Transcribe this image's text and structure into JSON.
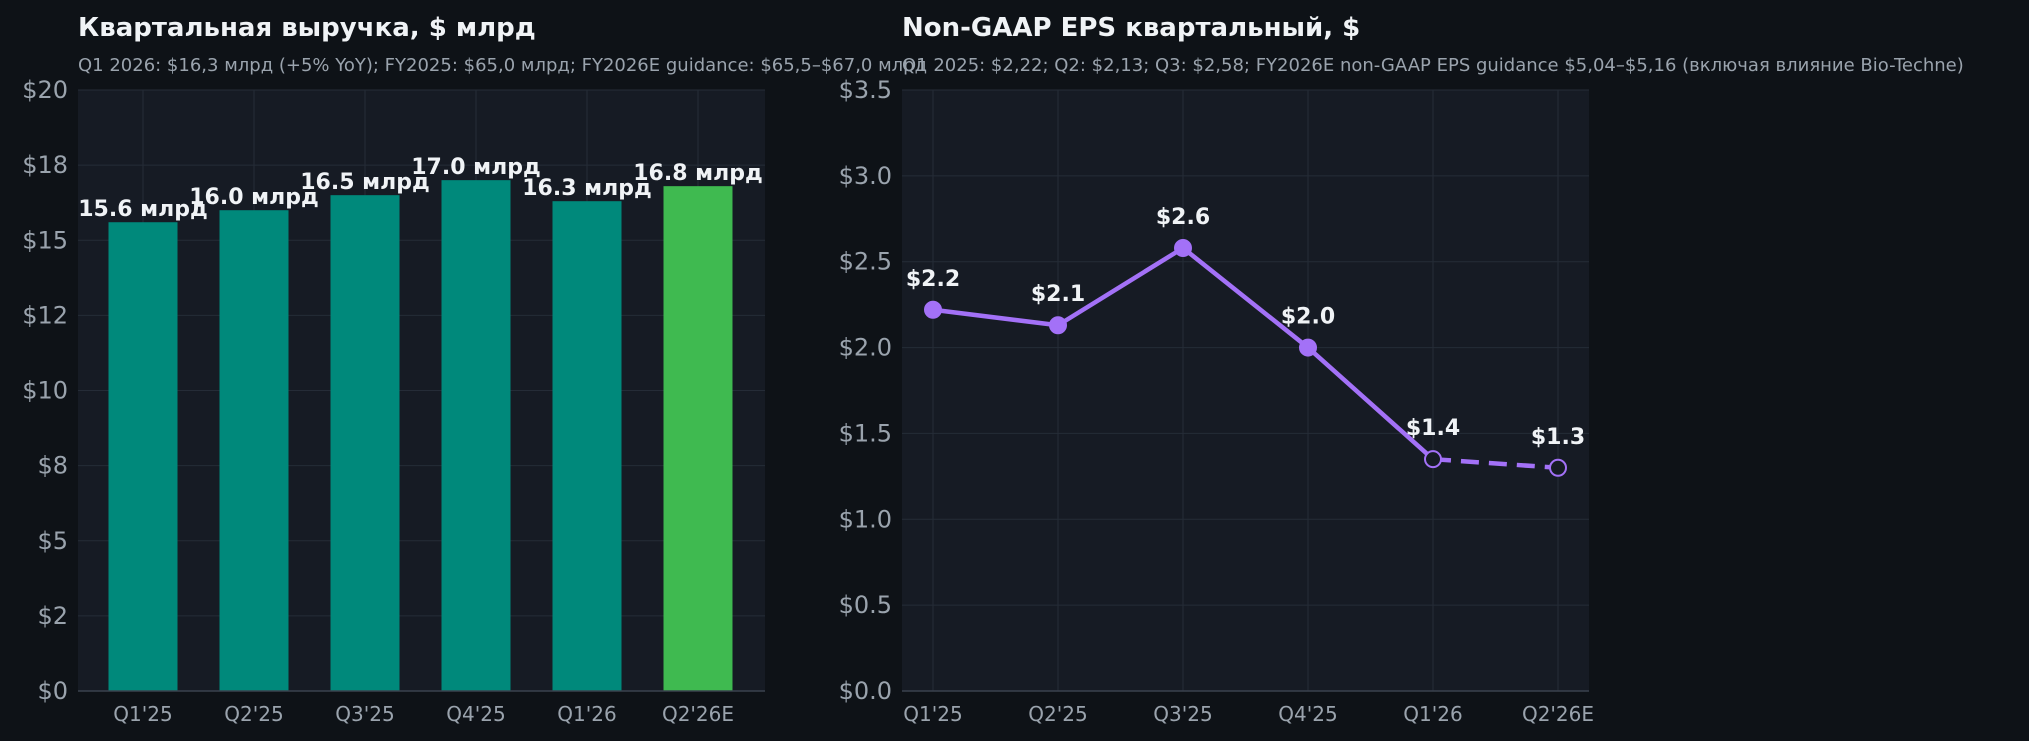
{
  "chart_data": [
    {
      "type": "bar",
      "title": "Квартальная выручка, $ млрд",
      "subtitle": "Q1 2026: $16,3 млрд (+5% YoY); FY2025: $65,0 млрд; FY2026E guidance: $65,5–$67,0 млрд",
      "categories": [
        "Q1'25",
        "Q2'25",
        "Q3'25",
        "Q4'25",
        "Q1'26",
        "Q2'26E"
      ],
      "values": [
        15.6,
        16.0,
        16.5,
        17.0,
        16.3,
        16.8
      ],
      "data_labels": [
        "15.6 млрд",
        "16.0 млрд",
        "16.5 млрд",
        "17.0 млрд",
        "16.3 млрд",
        "16.8 млрд"
      ],
      "colors": [
        "#00897b",
        "#00897b",
        "#00897b",
        "#00897b",
        "#00897b",
        "#3fba50"
      ],
      "ylim": [
        0,
        20
      ],
      "yticks": [
        0,
        2.5,
        5,
        7.5,
        10,
        12.5,
        15,
        17.5,
        20
      ],
      "ytick_labels": [
        "$0",
        "$2",
        "$5",
        "$8",
        "$10",
        "$12",
        "$15",
        "$18",
        "$20"
      ],
      "grid": true
    },
    {
      "type": "line",
      "title": "Non-GAAP EPS квартальный, $",
      "subtitle": "Q1 2025: $2,22; Q2: $2,13; Q3: $2,58; FY2026E non-GAAP EPS guidance $5,04–$5,16 (включая влияние Bio-Techne)",
      "categories": [
        "Q1'25",
        "Q2'25",
        "Q3'25",
        "Q4'25",
        "Q1'26",
        "Q2'26E"
      ],
      "values": [
        2.22,
        2.13,
        2.58,
        2.0,
        1.35,
        1.3
      ],
      "data_labels": [
        "$2.2",
        "$2.1",
        "$2.6",
        "$2.0",
        "$1.4",
        "$1.3"
      ],
      "estimated_from_index": 4,
      "color": "#a371f7",
      "ylim": [
        0,
        3.5
      ],
      "yticks": [
        0,
        0.5,
        1.0,
        1.5,
        2.0,
        2.5,
        3.0,
        3.5
      ],
      "ytick_labels": [
        "$0.0",
        "$0.5",
        "$1.0",
        "$1.5",
        "$2.0",
        "$2.5",
        "$3.0",
        "$3.5"
      ],
      "grid": true
    }
  ]
}
